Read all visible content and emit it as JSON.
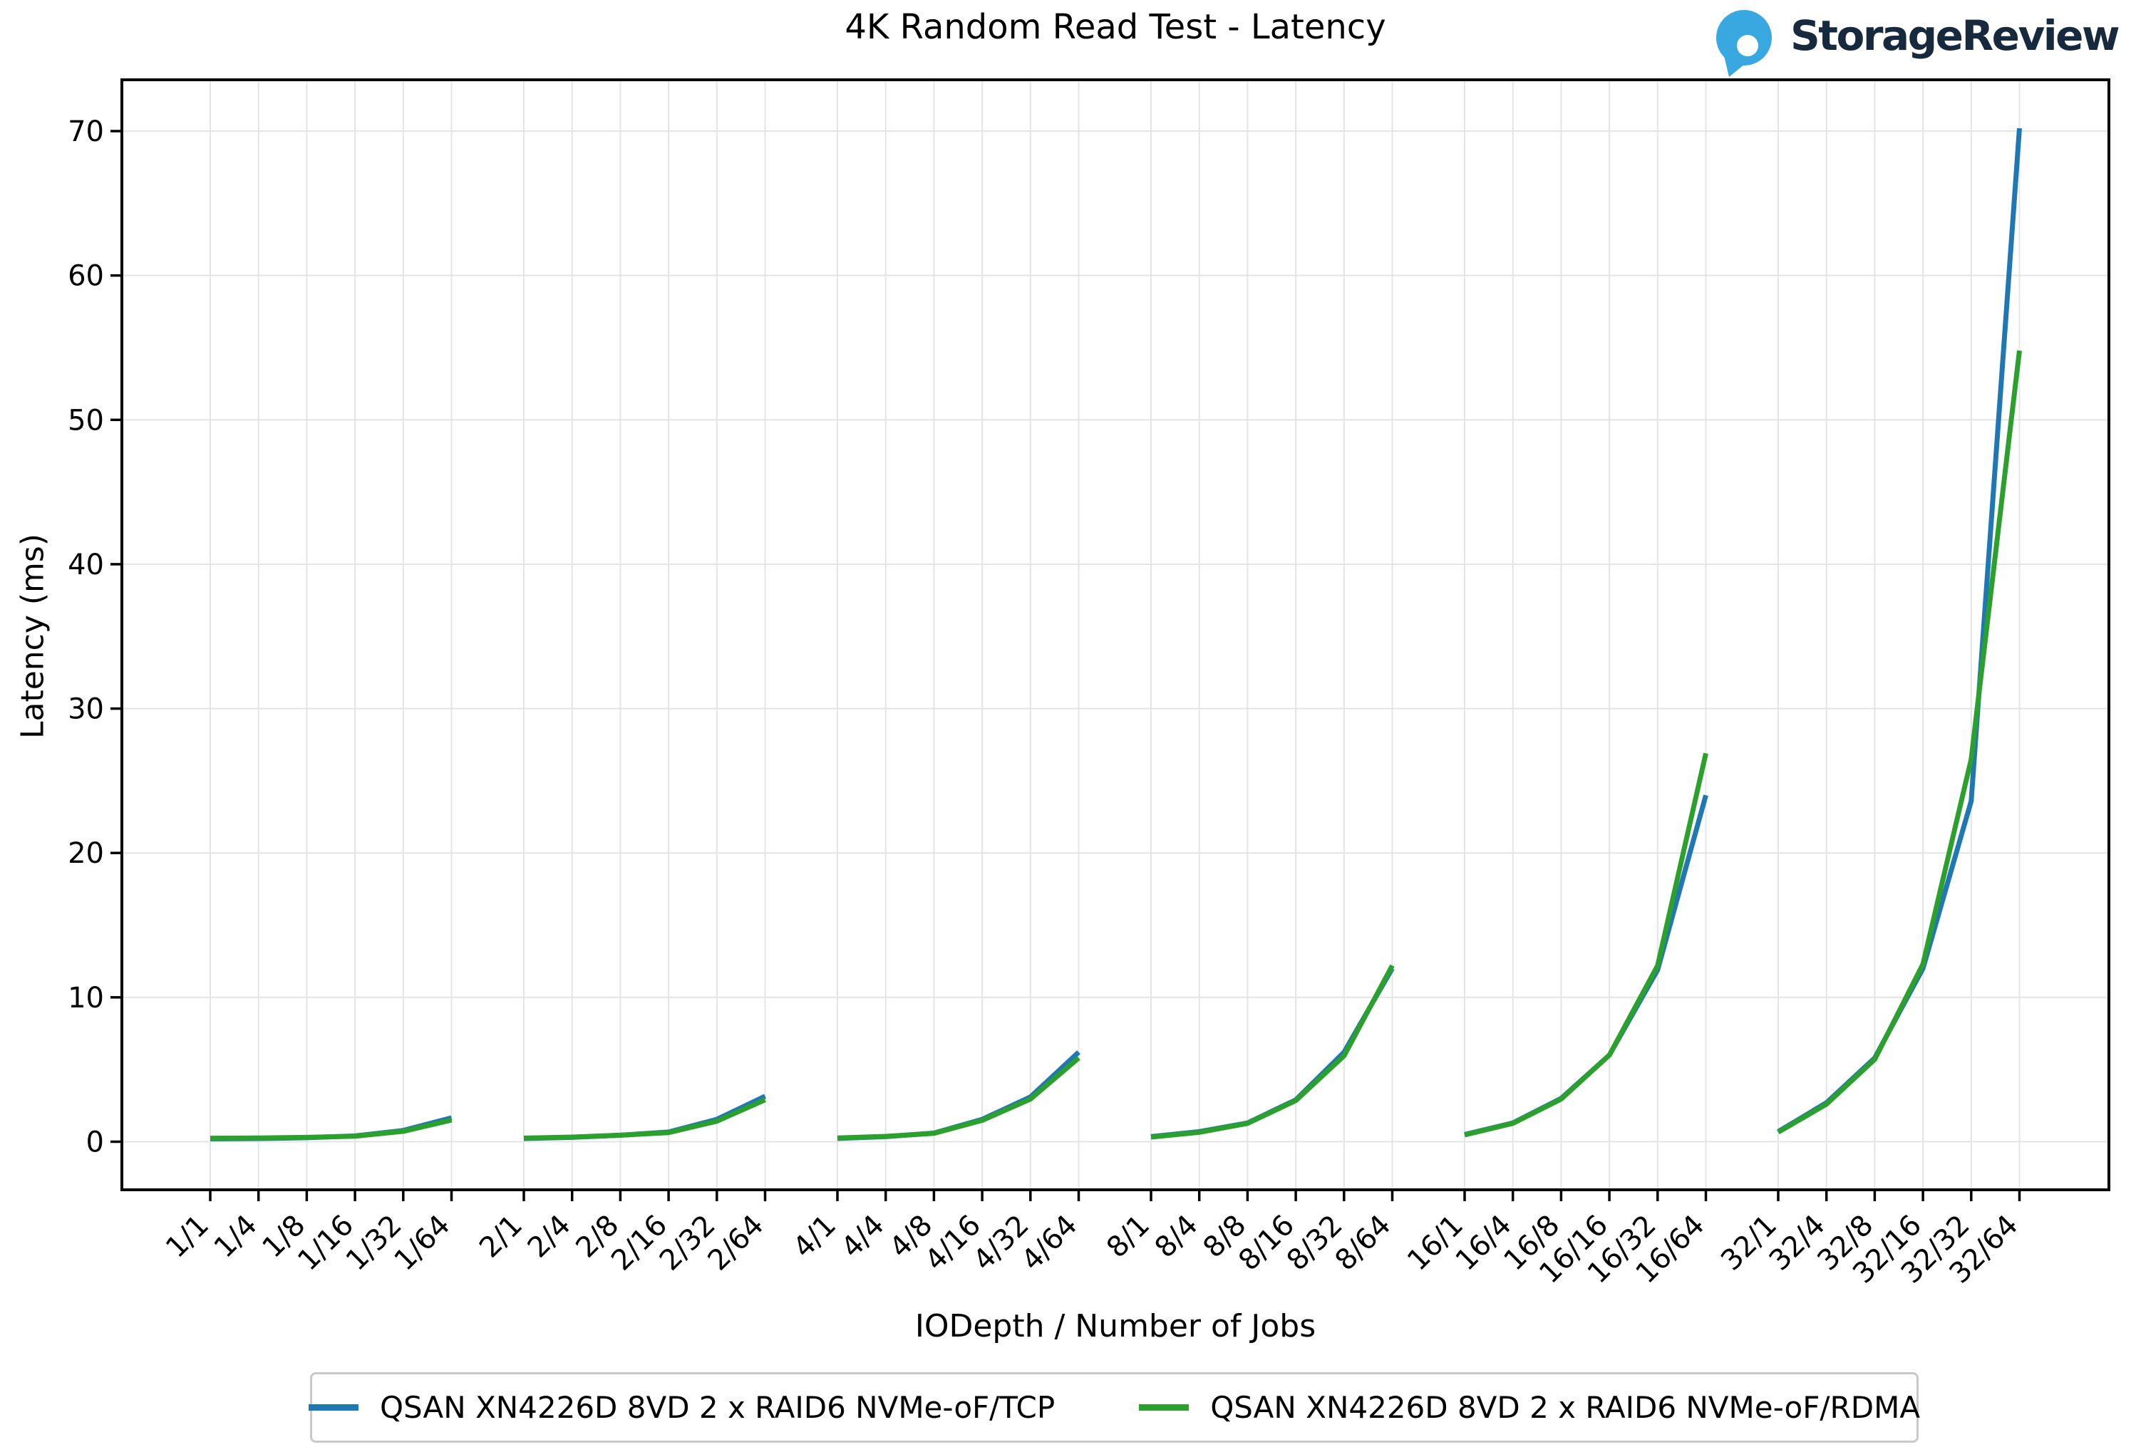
{
  "title": "4K Random Read Test - Latency",
  "logo": {
    "brand": "StorageReview",
    "icon": "storagereview-pin-icon",
    "icon_color": "#3aa8e0",
    "text_color": "#17293d"
  },
  "colors": {
    "tcp_line": "#1f77b4",
    "rdma_line": "#2ca02c",
    "gridline": "#e4e4e4",
    "axis": "#000000",
    "legend_border": "#c9c9c9"
  },
  "chart_data": {
    "type": "line",
    "title": "4K Random Read Test - Latency",
    "xlabel": "IODepth / Number of Jobs",
    "ylabel": "Latency (ms)",
    "y_ticks": [
      0,
      10,
      20,
      30,
      40,
      50,
      60,
      70
    ],
    "ylim": [
      -3.3,
      73.6
    ],
    "grid": true,
    "legend_position": "bottom",
    "points_per_group": 6,
    "categories": [
      "1/1",
      "1/4",
      "1/8",
      "1/16",
      "1/32",
      "1/64",
      "2/1",
      "2/4",
      "2/8",
      "2/16",
      "2/32",
      "2/64",
      "4/1",
      "4/4",
      "4/8",
      "4/16",
      "4/32",
      "4/64",
      "8/1",
      "8/4",
      "8/8",
      "8/16",
      "8/32",
      "8/64",
      "16/1",
      "16/4",
      "16/8",
      "16/16",
      "16/32",
      "16/64",
      "32/1",
      "32/4",
      "32/8",
      "32/16",
      "32/32",
      "32/64"
    ],
    "series": [
      {
        "name": "QSAN XN4226D 8VD 2 x RAID6 NVMe-oF/TCP",
        "color": "#1f77b4",
        "values": [
          0.2,
          0.22,
          0.28,
          0.4,
          0.78,
          1.65,
          0.22,
          0.3,
          0.45,
          0.67,
          1.55,
          3.15,
          0.23,
          0.35,
          0.6,
          1.55,
          3.1,
          6.2,
          0.35,
          0.7,
          1.3,
          2.9,
          6.2,
          12.0,
          0.5,
          1.3,
          3.0,
          6.0,
          11.9,
          24.0,
          0.7,
          2.7,
          5.8,
          12.0,
          23.6,
          70.2
        ]
      },
      {
        "name": "QSAN XN4226D 8VD 2 x RAID6 NVMe-oF/RDMA",
        "color": "#2ca02c",
        "values": [
          0.24,
          0.26,
          0.3,
          0.38,
          0.72,
          1.5,
          0.25,
          0.32,
          0.45,
          0.63,
          1.42,
          2.9,
          0.26,
          0.37,
          0.58,
          1.48,
          2.95,
          5.8,
          0.32,
          0.65,
          1.27,
          2.85,
          5.95,
          12.2,
          0.47,
          1.27,
          2.95,
          6.0,
          12.2,
          26.9,
          0.66,
          2.6,
          5.7,
          12.3,
          26.5,
          54.8
        ]
      }
    ]
  }
}
